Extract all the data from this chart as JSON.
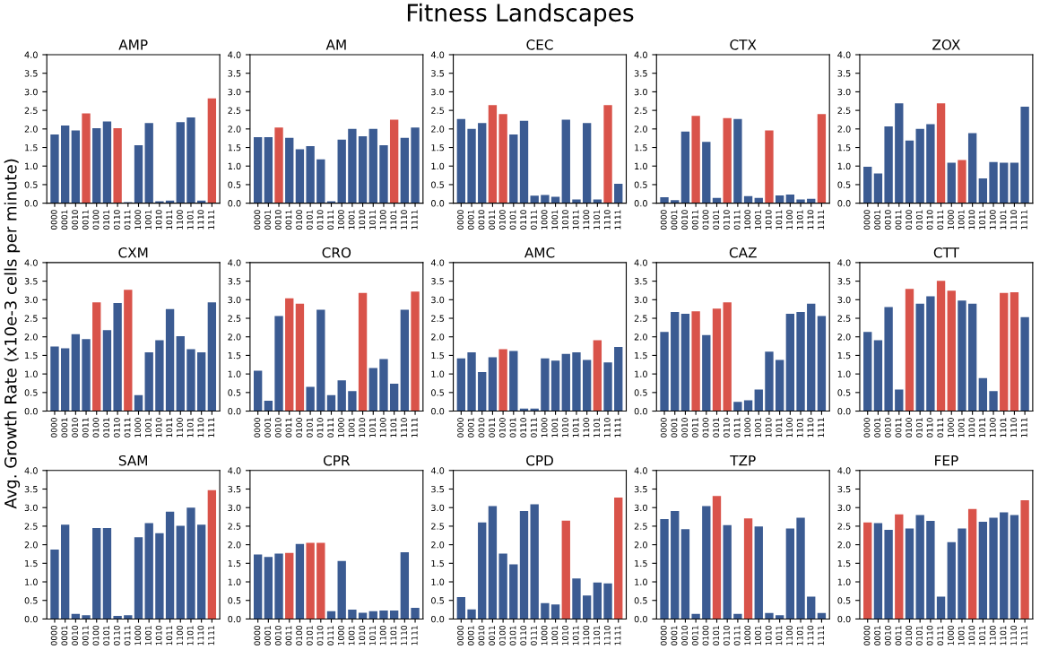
{
  "chart_data": [
    {
      "type": "bar",
      "title": "AMP",
      "annotations": [
        "Fitness Landscapes"
      ],
      "categories": [
        "0000",
        "0001",
        "0010",
        "0011",
        "0100",
        "0101",
        "0110",
        "0111",
        "1000",
        "1001",
        "1010",
        "1011",
        "1100",
        "1101",
        "1110",
        "1111"
      ],
      "values": [
        1.85,
        2.09,
        1.96,
        2.42,
        2.02,
        2.2,
        2.02,
        0.03,
        1.56,
        2.16,
        0.05,
        0.07,
        2.18,
        2.31,
        0.07,
        2.82
      ],
      "colors": [
        "#3b5b92",
        "#3b5b92",
        "#3b5b92",
        "#d9534a",
        "#3b5b92",
        "#3b5b92",
        "#d9534a",
        "#3b5b92",
        "#3b5b92",
        "#3b5b92",
        "#3b5b92",
        "#3b5b92",
        "#3b5b92",
        "#3b5b92",
        "#3b5b92",
        "#d9534a"
      ],
      "ylim": [
        0,
        4
      ],
      "yticks": [
        {
          "value": 0,
          "label": "0.0"
        },
        0.5,
        {
          "value": 1,
          "label": "1.0"
        },
        1.5,
        {
          "value": 2,
          "label": "2.0"
        },
        2.5,
        {
          "value": 3,
          "label": "3.0"
        },
        3.5,
        {
          "value": 4,
          "label": "4.0"
        }
      ]
    },
    {
      "type": "bar",
      "title": "AM",
      "categories": [
        "0000",
        "0001",
        "0010",
        "0011",
        "0100",
        "0101",
        "0110",
        "0111",
        "1000",
        "1001",
        "1010",
        "1011",
        "1100",
        "1101",
        "1110",
        "1111"
      ],
      "values": [
        1.78,
        1.78,
        2.04,
        1.76,
        1.45,
        1.54,
        1.18,
        0.05,
        1.71,
        2.0,
        1.8,
        2.0,
        1.56,
        2.25,
        1.76,
        2.04
      ],
      "colors": [
        "#3b5b92",
        "#3b5b92",
        "#d9534a",
        "#3b5b92",
        "#3b5b92",
        "#3b5b92",
        "#3b5b92",
        "#3b5b92",
        "#3b5b92",
        "#3b5b92",
        "#3b5b92",
        "#3b5b92",
        "#3b5b92",
        "#d9534a",
        "#3b5b92",
        "#3b5b92"
      ],
      "ylim": [
        0,
        4
      ],
      "yticks": [
        {
          "value": 0,
          "label": "0.0"
        },
        0.5,
        {
          "value": 1,
          "label": "1.0"
        },
        1.5,
        {
          "value": 2,
          "label": "2.0"
        },
        2.5,
        {
          "value": 3,
          "label": "3.0"
        },
        3.5,
        {
          "value": 4,
          "label": "4.0"
        }
      ]
    },
    {
      "type": "bar",
      "title": "CEC",
      "categories": [
        "0000",
        "0001",
        "0010",
        "0011",
        "0100",
        "0101",
        "0110",
        "0111",
        "1000",
        "1001",
        "1010",
        "1011",
        "1100",
        "1101",
        "1110",
        "1111"
      ],
      "values": [
        2.27,
        2.0,
        2.16,
        2.64,
        2.4,
        1.85,
        2.22,
        0.2,
        0.22,
        0.17,
        2.25,
        0.1,
        2.16,
        0.1,
        2.64,
        0.52
      ],
      "colors": [
        "#3b5b92",
        "#3b5b92",
        "#3b5b92",
        "#d9534a",
        "#d9534a",
        "#3b5b92",
        "#3b5b92",
        "#3b5b92",
        "#3b5b92",
        "#3b5b92",
        "#3b5b92",
        "#3b5b92",
        "#3b5b92",
        "#3b5b92",
        "#d9534a",
        "#3b5b92"
      ],
      "ylim": [
        0,
        4
      ],
      "yticks": [
        {
          "value": 0,
          "label": "0.0"
        },
        0.5,
        {
          "value": 1,
          "label": "1.0"
        },
        1.5,
        {
          "value": 2,
          "label": "2.0"
        },
        2.5,
        {
          "value": 3,
          "label": "3.0"
        },
        3.5,
        {
          "value": 4,
          "label": "4.0"
        }
      ]
    },
    {
      "type": "bar",
      "title": "CTX",
      "categories": [
        "0000",
        "0001",
        "0010",
        "0011",
        "0100",
        "0101",
        "0110",
        "0111",
        "1000",
        "1001",
        "1010",
        "1011",
        "1100",
        "1101",
        "1110",
        "1111"
      ],
      "values": [
        0.16,
        0.08,
        1.93,
        2.35,
        1.65,
        0.14,
        2.29,
        2.27,
        0.19,
        0.14,
        1.96,
        0.21,
        0.23,
        0.1,
        0.12,
        2.4
      ],
      "colors": [
        "#3b5b92",
        "#3b5b92",
        "#3b5b92",
        "#d9534a",
        "#3b5b92",
        "#3b5b92",
        "#d9534a",
        "#3b5b92",
        "#3b5b92",
        "#3b5b92",
        "#d9534a",
        "#3b5b92",
        "#3b5b92",
        "#3b5b92",
        "#3b5b92",
        "#d9534a"
      ],
      "ylim": [
        0,
        4
      ],
      "yticks": [
        {
          "value": 0,
          "label": "0.0"
        },
        0.5,
        {
          "value": 1,
          "label": "1.0"
        },
        1.5,
        {
          "value": 2,
          "label": "2.0"
        },
        2.5,
        {
          "value": 3,
          "label": "3.0"
        },
        3.5,
        {
          "value": 4,
          "label": "4.0"
        }
      ]
    },
    {
      "type": "bar",
      "title": "ZOX",
      "categories": [
        "0000",
        "0001",
        "0010",
        "0011",
        "0100",
        "0101",
        "0110",
        "0111",
        "1000",
        "1001",
        "1010",
        "1011",
        "1100",
        "1101",
        "1110",
        "1111"
      ],
      "values": [
        0.98,
        0.8,
        2.07,
        2.69,
        1.69,
        2.0,
        2.13,
        2.69,
        1.09,
        1.16,
        1.89,
        0.67,
        1.11,
        1.09,
        1.09,
        2.6
      ],
      "colors": [
        "#3b5b92",
        "#3b5b92",
        "#3b5b92",
        "#3b5b92",
        "#3b5b92",
        "#3b5b92",
        "#3b5b92",
        "#d9534a",
        "#3b5b92",
        "#d9534a",
        "#3b5b92",
        "#3b5b92",
        "#3b5b92",
        "#3b5b92",
        "#3b5b92",
        "#3b5b92"
      ],
      "ylim": [
        0,
        4
      ],
      "yticks": [
        {
          "value": 0,
          "label": "0.0"
        },
        0.5,
        {
          "value": 1,
          "label": "1.0"
        },
        1.5,
        {
          "value": 2,
          "label": "2.0"
        },
        2.5,
        {
          "value": 3,
          "label": "3.0"
        },
        3.5,
        {
          "value": 4,
          "label": "4.0"
        }
      ]
    },
    {
      "type": "bar",
      "title": "CXM",
      "ylabel": "Avg. Growth Rate (x10e-3 cells per minute)",
      "categories": [
        "0000",
        "0001",
        "0010",
        "0011",
        "0100",
        "0101",
        "0110",
        "0111",
        "1000",
        "1001",
        "1010",
        "1011",
        "1100",
        "1101",
        "1110",
        "1111"
      ],
      "values": [
        1.74,
        1.69,
        2.07,
        1.94,
        2.93,
        2.18,
        2.91,
        3.27,
        0.43,
        1.58,
        1.91,
        2.75,
        2.02,
        1.67,
        1.58,
        2.93
      ],
      "colors": [
        "#3b5b92",
        "#3b5b92",
        "#3b5b92",
        "#3b5b92",
        "#d9534a",
        "#3b5b92",
        "#3b5b92",
        "#d9534a",
        "#3b5b92",
        "#3b5b92",
        "#3b5b92",
        "#3b5b92",
        "#3b5b92",
        "#3b5b92",
        "#3b5b92",
        "#3b5b92"
      ],
      "ylim": [
        0,
        4
      ],
      "yticks": [
        {
          "value": 0,
          "label": "0.0"
        },
        0.5,
        {
          "value": 1,
          "label": "1.0"
        },
        1.5,
        {
          "value": 2,
          "label": "2.0"
        },
        2.5,
        {
          "value": 3,
          "label": "3.0"
        },
        3.5,
        {
          "value": 4,
          "label": "4.0"
        }
      ]
    },
    {
      "type": "bar",
      "title": "CRO",
      "categories": [
        "0000",
        "0001",
        "0010",
        "0011",
        "0100",
        "0101",
        "0110",
        "0111",
        "1000",
        "1001",
        "1010",
        "1011",
        "1100",
        "1101",
        "1110",
        "1111"
      ],
      "values": [
        1.09,
        0.28,
        2.56,
        3.04,
        2.89,
        0.65,
        2.73,
        0.43,
        0.83,
        0.54,
        3.18,
        1.16,
        1.4,
        0.74,
        2.73,
        3.22
      ],
      "colors": [
        "#3b5b92",
        "#3b5b92",
        "#3b5b92",
        "#d9534a",
        "#d9534a",
        "#3b5b92",
        "#3b5b92",
        "#3b5b92",
        "#3b5b92",
        "#3b5b92",
        "#d9534a",
        "#3b5b92",
        "#3b5b92",
        "#3b5b92",
        "#3b5b92",
        "#d9534a"
      ],
      "ylim": [
        0,
        4
      ],
      "yticks": [
        {
          "value": 0,
          "label": "0.0"
        },
        0.5,
        {
          "value": 1,
          "label": "1.0"
        },
        1.5,
        {
          "value": 2,
          "label": "2.0"
        },
        2.5,
        {
          "value": 3,
          "label": "3.0"
        },
        3.5,
        {
          "value": 4,
          "label": "4.0"
        }
      ]
    },
    {
      "type": "bar",
      "title": "AMC",
      "categories": [
        "0000",
        "0001",
        "0010",
        "0011",
        "0100",
        "0101",
        "0110",
        "0111",
        "1000",
        "1001",
        "1010",
        "1011",
        "1100",
        "1101",
        "1110",
        "1111"
      ],
      "values": [
        1.42,
        1.58,
        1.05,
        1.45,
        1.67,
        1.62,
        0.07,
        0.07,
        1.42,
        1.36,
        1.54,
        1.58,
        1.38,
        1.91,
        1.31,
        1.73
      ],
      "colors": [
        "#3b5b92",
        "#3b5b92",
        "#3b5b92",
        "#3b5b92",
        "#d9534a",
        "#3b5b92",
        "#3b5b92",
        "#3b5b92",
        "#3b5b92",
        "#3b5b92",
        "#3b5b92",
        "#3b5b92",
        "#3b5b92",
        "#d9534a",
        "#3b5b92",
        "#3b5b92"
      ],
      "ylim": [
        0,
        4
      ],
      "yticks": [
        {
          "value": 0,
          "label": "0.0"
        },
        0.5,
        {
          "value": 1,
          "label": "1.0"
        },
        1.5,
        {
          "value": 2,
          "label": "2.0"
        },
        2.5,
        {
          "value": 3,
          "label": "3.0"
        },
        3.5,
        {
          "value": 4,
          "label": "4.0"
        }
      ]
    },
    {
      "type": "bar",
      "title": "CAZ",
      "categories": [
        "0000",
        "0001",
        "0010",
        "0011",
        "0100",
        "0101",
        "0110",
        "0111",
        "1000",
        "1001",
        "1010",
        "1011",
        "1100",
        "1101",
        "1110",
        "1111"
      ],
      "values": [
        2.13,
        2.67,
        2.62,
        2.69,
        2.05,
        2.76,
        2.93,
        0.25,
        0.29,
        0.58,
        1.6,
        1.38,
        2.62,
        2.67,
        2.89,
        2.56
      ],
      "colors": [
        "#3b5b92",
        "#3b5b92",
        "#3b5b92",
        "#d9534a",
        "#3b5b92",
        "#d9534a",
        "#d9534a",
        "#3b5b92",
        "#3b5b92",
        "#3b5b92",
        "#3b5b92",
        "#3b5b92",
        "#3b5b92",
        "#3b5b92",
        "#3b5b92",
        "#3b5b92"
      ],
      "ylim": [
        0,
        4
      ],
      "yticks": [
        {
          "value": 0,
          "label": "0.0"
        },
        0.5,
        {
          "value": 1,
          "label": "1.0"
        },
        1.5,
        {
          "value": 2,
          "label": "2.0"
        },
        2.5,
        {
          "value": 3,
          "label": "3.0"
        },
        3.5,
        {
          "value": 4,
          "label": "4.0"
        }
      ]
    },
    {
      "type": "bar",
      "title": "CTT",
      "categories": [
        "0000",
        "0001",
        "0010",
        "0011",
        "0100",
        "0101",
        "0110",
        "0111",
        "1000",
        "1001",
        "1010",
        "1011",
        "1100",
        "1101",
        "1110",
        "1111"
      ],
      "values": [
        2.13,
        1.91,
        2.8,
        0.58,
        3.29,
        2.89,
        3.09,
        3.51,
        3.24,
        2.98,
        2.89,
        0.89,
        0.54,
        3.18,
        3.2,
        2.53
      ],
      "colors": [
        "#3b5b92",
        "#3b5b92",
        "#3b5b92",
        "#3b5b92",
        "#d9534a",
        "#3b5b92",
        "#3b5b92",
        "#d9534a",
        "#d9534a",
        "#3b5b92",
        "#3b5b92",
        "#3b5b92",
        "#3b5b92",
        "#d9534a",
        "#d9534a",
        "#3b5b92"
      ],
      "ylim": [
        0,
        4
      ],
      "yticks": [
        {
          "value": 0,
          "label": "0.0"
        },
        0.5,
        {
          "value": 1,
          "label": "1.0"
        },
        1.5,
        {
          "value": 2,
          "label": "2.0"
        },
        2.5,
        {
          "value": 3,
          "label": "3.0"
        },
        3.5,
        {
          "value": 4,
          "label": "4.0"
        }
      ]
    },
    {
      "type": "bar",
      "title": "SAM",
      "categories": [
        "0000",
        "0001",
        "0010",
        "0011",
        "0100",
        "0101",
        "0110",
        "0111",
        "1000",
        "1001",
        "1010",
        "1011",
        "1100",
        "1101",
        "1110",
        "1111"
      ],
      "values": [
        1.87,
        2.54,
        0.14,
        0.1,
        2.45,
        2.45,
        0.08,
        0.1,
        2.2,
        2.58,
        2.31,
        2.89,
        2.51,
        3.0,
        2.54,
        3.47
      ],
      "colors": [
        "#3b5b92",
        "#3b5b92",
        "#3b5b92",
        "#3b5b92",
        "#3b5b92",
        "#3b5b92",
        "#3b5b92",
        "#3b5b92",
        "#3b5b92",
        "#3b5b92",
        "#3b5b92",
        "#3b5b92",
        "#3b5b92",
        "#3b5b92",
        "#3b5b92",
        "#d9534a"
      ],
      "ylim": [
        0,
        4
      ],
      "yticks": [
        {
          "value": 0,
          "label": "0.0"
        },
        0.5,
        {
          "value": 1,
          "label": "1.0"
        },
        1.5,
        {
          "value": 2,
          "label": "2.0"
        },
        2.5,
        {
          "value": 3,
          "label": "3.0"
        },
        3.5,
        {
          "value": 4,
          "label": "4.0"
        }
      ]
    },
    {
      "type": "bar",
      "title": "CPR",
      "categories": [
        "0000",
        "0001",
        "0010",
        "0011",
        "0100",
        "0101",
        "0110",
        "0111",
        "1000",
        "1001",
        "1010",
        "1011",
        "1100",
        "1101",
        "1110",
        "1111"
      ],
      "values": [
        1.74,
        1.67,
        1.76,
        1.78,
        2.02,
        2.05,
        2.05,
        0.21,
        1.56,
        0.25,
        0.17,
        0.21,
        0.23,
        0.23,
        1.8,
        0.3
      ],
      "colors": [
        "#3b5b92",
        "#3b5b92",
        "#3b5b92",
        "#d9534a",
        "#3b5b92",
        "#d9534a",
        "#d9534a",
        "#3b5b92",
        "#3b5b92",
        "#3b5b92",
        "#3b5b92",
        "#3b5b92",
        "#3b5b92",
        "#3b5b92",
        "#3b5b92",
        "#3b5b92"
      ],
      "ylim": [
        0,
        4
      ],
      "yticks": [
        {
          "value": 0,
          "label": "0.0"
        },
        0.5,
        {
          "value": 1,
          "label": "1.0"
        },
        1.5,
        {
          "value": 2,
          "label": "2.0"
        },
        2.5,
        {
          "value": 3,
          "label": "3.0"
        },
        3.5,
        {
          "value": 4,
          "label": "4.0"
        }
      ]
    },
    {
      "type": "bar",
      "title": "CPD",
      "categories": [
        "0000",
        "0001",
        "0010",
        "0011",
        "0100",
        "0101",
        "0110",
        "0111",
        "1000",
        "1001",
        "1010",
        "1011",
        "1100",
        "1101",
        "1110",
        "1111"
      ],
      "values": [
        0.59,
        0.26,
        2.6,
        3.04,
        1.76,
        1.47,
        2.91,
        3.09,
        0.43,
        0.39,
        2.65,
        1.09,
        0.63,
        0.98,
        0.96,
        3.27
      ],
      "colors": [
        "#3b5b92",
        "#3b5b92",
        "#3b5b92",
        "#3b5b92",
        "#3b5b92",
        "#3b5b92",
        "#3b5b92",
        "#3b5b92",
        "#3b5b92",
        "#3b5b92",
        "#d9534a",
        "#3b5b92",
        "#3b5b92",
        "#3b5b92",
        "#3b5b92",
        "#d9534a"
      ],
      "ylim": [
        0,
        4
      ],
      "yticks": [
        {
          "value": 0,
          "label": "0.0"
        },
        0.5,
        {
          "value": 1,
          "label": "1.0"
        },
        1.5,
        {
          "value": 2,
          "label": "2.0"
        },
        2.5,
        {
          "value": 3,
          "label": "3.0"
        },
        3.5,
        {
          "value": 4,
          "label": "4.0"
        }
      ]
    },
    {
      "type": "bar",
      "title": "TZP",
      "categories": [
        "0000",
        "0001",
        "0010",
        "0011",
        "0100",
        "0101",
        "0110",
        "0111",
        "1000",
        "1001",
        "1010",
        "1011",
        "1100",
        "1101",
        "1110",
        "1111"
      ],
      "values": [
        2.69,
        2.91,
        2.42,
        0.14,
        3.04,
        3.31,
        2.53,
        0.14,
        2.71,
        2.49,
        0.16,
        0.1,
        2.44,
        2.73,
        0.6,
        0.16
      ],
      "colors": [
        "#3b5b92",
        "#3b5b92",
        "#3b5b92",
        "#3b5b92",
        "#3b5b92",
        "#d9534a",
        "#3b5b92",
        "#3b5b92",
        "#d9534a",
        "#3b5b92",
        "#3b5b92",
        "#3b5b92",
        "#3b5b92",
        "#3b5b92",
        "#3b5b92",
        "#3b5b92"
      ],
      "ylim": [
        0,
        4
      ],
      "yticks": [
        {
          "value": 0,
          "label": "0.0"
        },
        0.5,
        {
          "value": 1,
          "label": "1.0"
        },
        1.5,
        {
          "value": 2,
          "label": "2.0"
        },
        2.5,
        {
          "value": 3,
          "label": "3.0"
        },
        3.5,
        {
          "value": 4,
          "label": "4.0"
        }
      ]
    },
    {
      "type": "bar",
      "title": "FEP",
      "categories": [
        "0000",
        "0001",
        "0010",
        "0011",
        "0100",
        "0101",
        "0110",
        "0111",
        "1000",
        "1001",
        "1010",
        "1011",
        "1100",
        "1101",
        "1110",
        "1111"
      ],
      "values": [
        2.6,
        2.58,
        2.4,
        2.82,
        2.44,
        2.8,
        2.64,
        0.6,
        2.07,
        2.44,
        2.96,
        2.62,
        2.73,
        2.87,
        2.8,
        3.2
      ],
      "colors": [
        "#d9534a",
        "#3b5b92",
        "#3b5b92",
        "#d9534a",
        "#3b5b92",
        "#3b5b92",
        "#3b5b92",
        "#3b5b92",
        "#3b5b92",
        "#3b5b92",
        "#d9534a",
        "#3b5b92",
        "#3b5b92",
        "#3b5b92",
        "#3b5b92",
        "#d9534a"
      ],
      "ylim": [
        0,
        4
      ],
      "yticks": [
        {
          "value": 0,
          "label": "0.0"
        },
        0.5,
        {
          "value": 1,
          "label": "1.0"
        },
        1.5,
        {
          "value": 2,
          "label": "2.0"
        },
        2.5,
        {
          "value": 3,
          "label": "3.0"
        },
        3.5,
        {
          "value": 4,
          "label": "4.0"
        }
      ]
    }
  ]
}
